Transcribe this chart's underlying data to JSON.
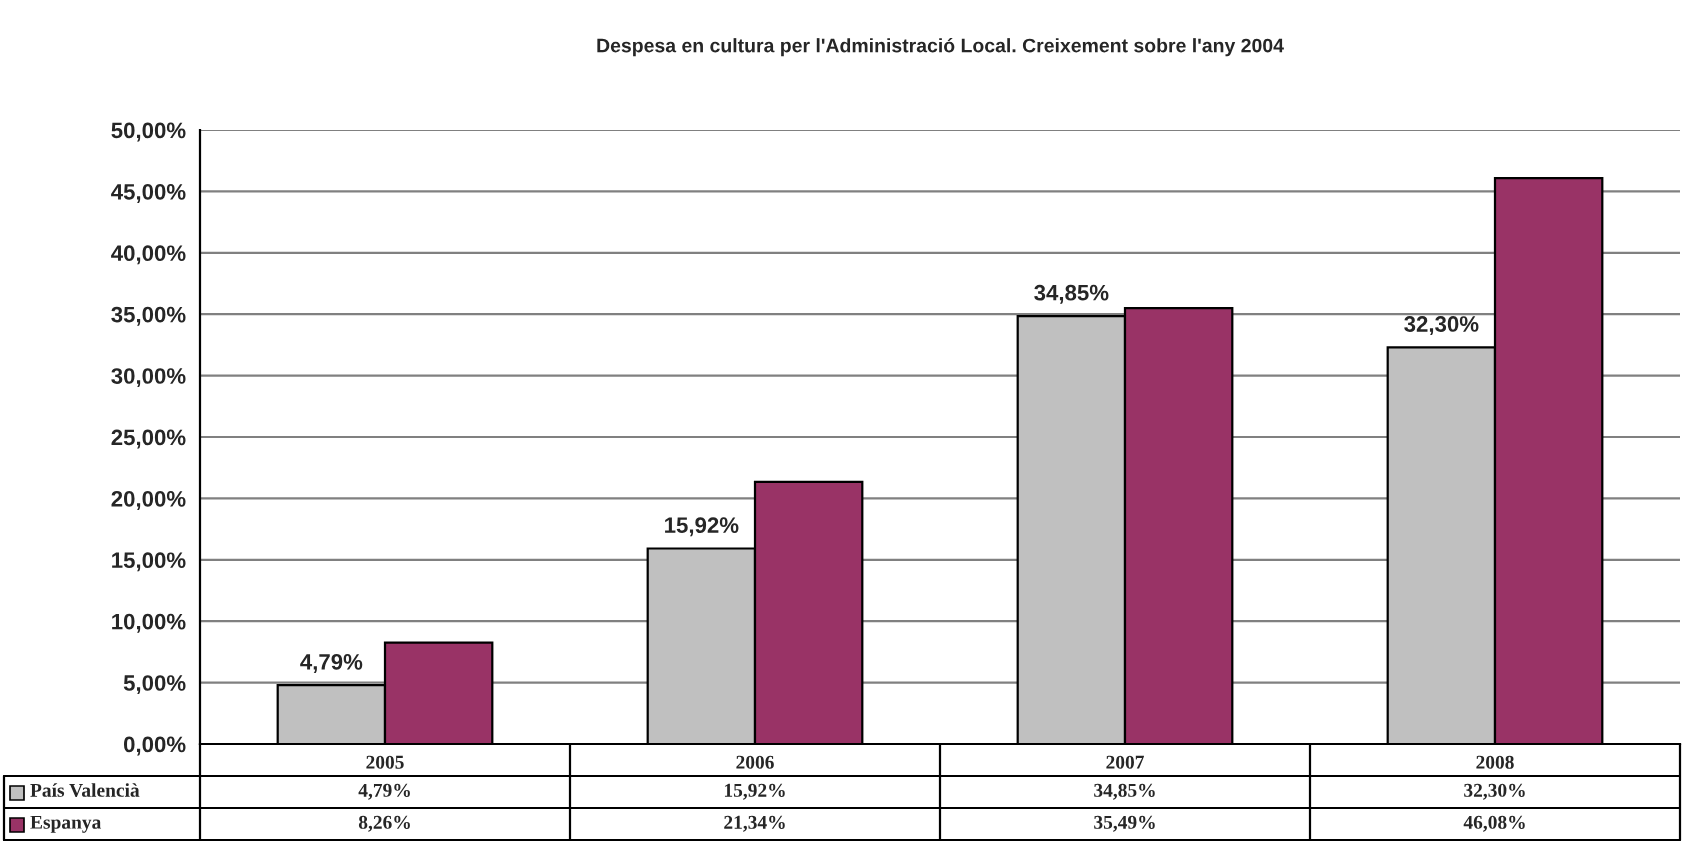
{
  "chart_data": {
    "type": "bar",
    "title": "Despesa en cultura per l'Administració Local. Creixement sobre l'any 2004",
    "categories": [
      "2005",
      "2006",
      "2007",
      "2008"
    ],
    "series": [
      {
        "name": "País Valencià",
        "color": "#c0c0c0",
        "values": [
          4.79,
          15.92,
          34.85,
          32.3
        ],
        "value_labels": [
          "4,79%",
          "15,92%",
          "34,85%",
          "32,30%"
        ]
      },
      {
        "name": "Espanya",
        "color": "#993366",
        "values": [
          8.26,
          21.34,
          35.49,
          46.08
        ],
        "value_labels": [
          "8,26%",
          "21,34%",
          "35,49%",
          "46,08%"
        ]
      }
    ],
    "annotations": [
      {
        "text": "4,79%",
        "x": "2005",
        "y": 4.79
      },
      {
        "text": "15,92%",
        "x": "2006",
        "y": 15.92
      },
      {
        "text": "34,85%",
        "x": "2007",
        "y": 34.85
      },
      {
        "text": "32,30%",
        "x": "2008",
        "y": 32.3
      }
    ],
    "ylim": [
      0,
      50
    ],
    "yticks": [
      {
        "value": 0,
        "label": "0,00%"
      },
      {
        "value": 5,
        "label": "5,00%"
      },
      {
        "value": 10,
        "label": "10,00%"
      },
      {
        "value": 15,
        "label": "15,00%"
      },
      {
        "value": 20,
        "label": "20,00%"
      },
      {
        "value": 25,
        "label": "25,00%"
      },
      {
        "value": 30,
        "label": "30,00%"
      },
      {
        "value": 35,
        "label": "35,00%"
      },
      {
        "value": 40,
        "label": "40,00%"
      },
      {
        "value": 45,
        "label": "45,00%"
      },
      {
        "value": 50,
        "label": "50,00%"
      }
    ],
    "grid": "y",
    "legend": "bottom left"
  }
}
